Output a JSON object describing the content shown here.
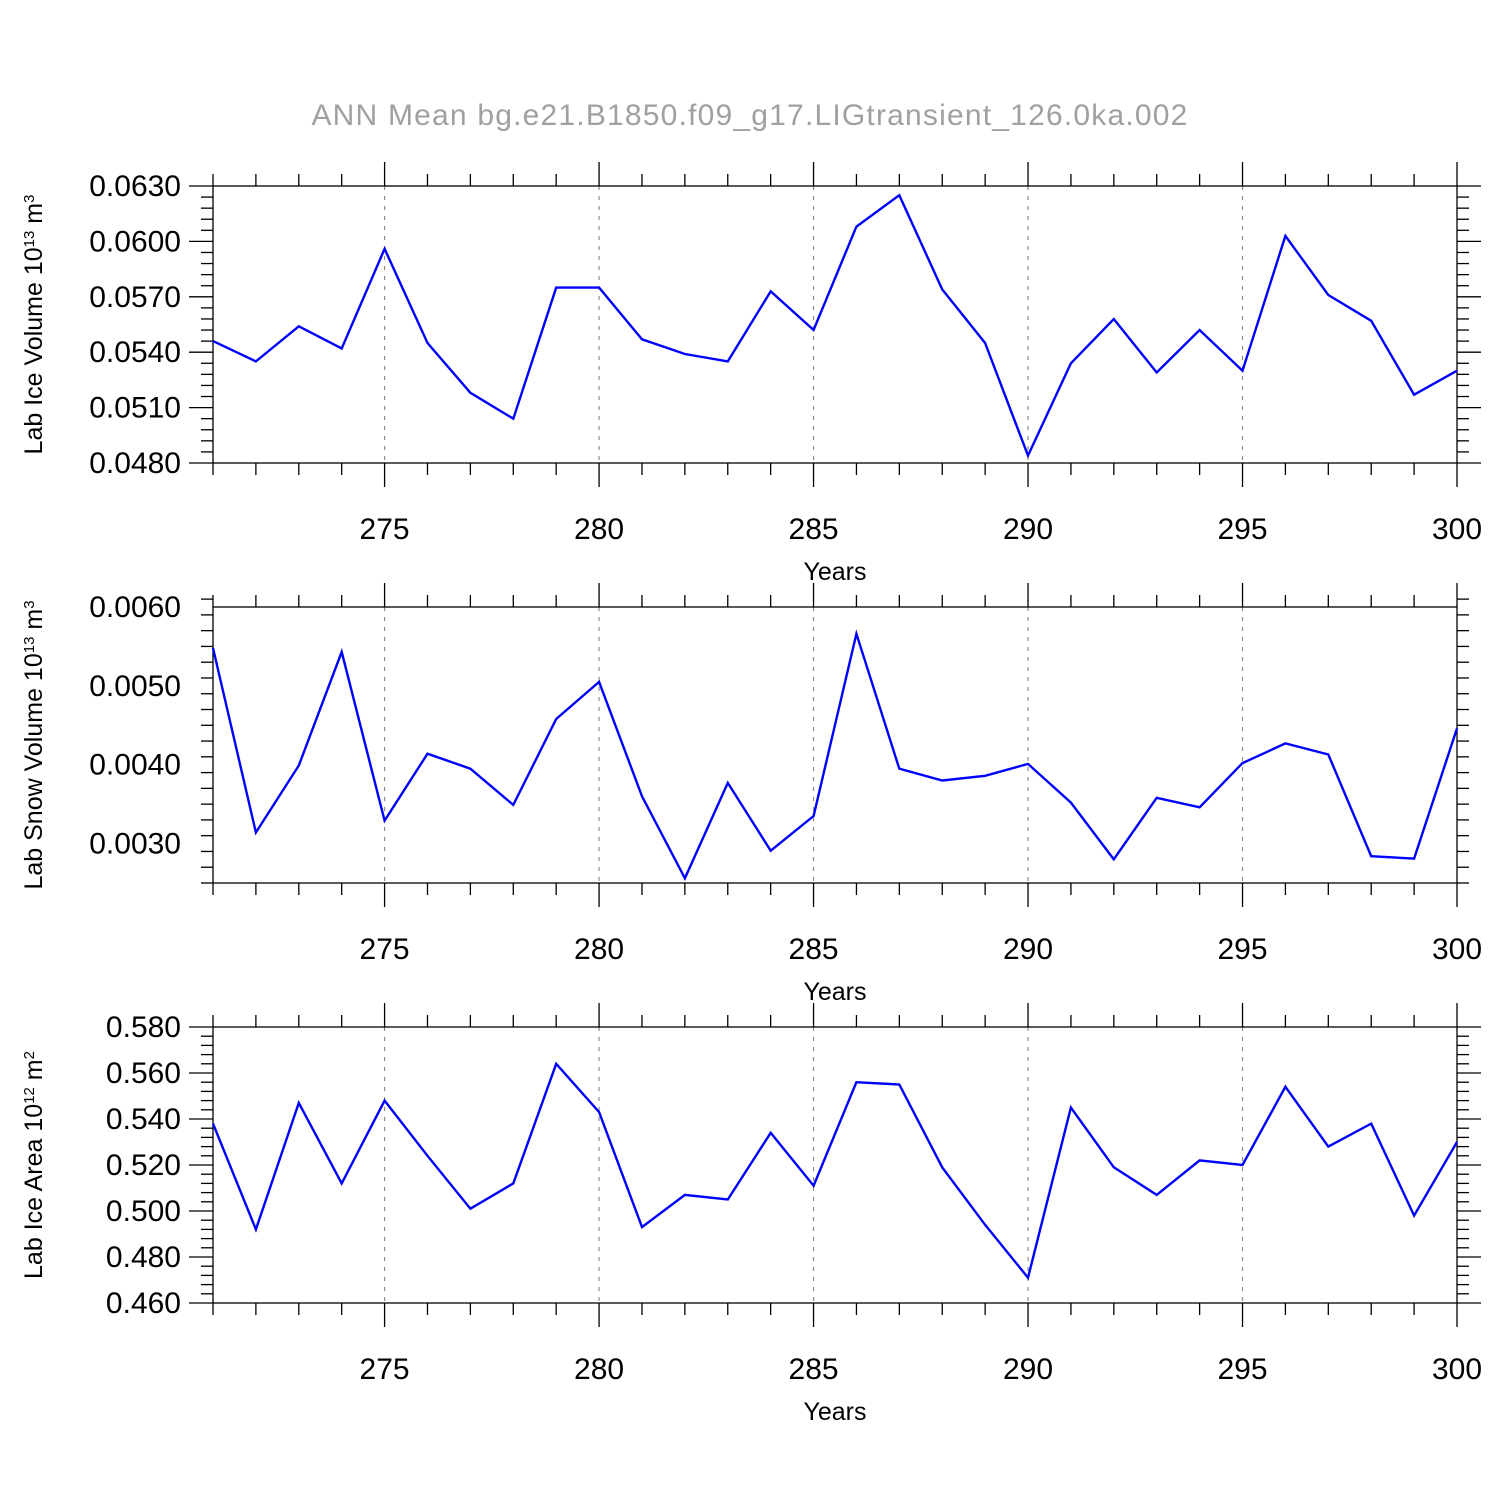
{
  "title": "ANN Mean bg.e21.B1850.f09_g17.LIGtransient_126.0ka.002",
  "colors": {
    "series": "#0000ff",
    "axis": "#000000",
    "grid": "#8c8c8c",
    "title": "#a0a0a0"
  },
  "chart_data": [
    {
      "type": "line",
      "ylabel_main": "Lab Ice Volume 10",
      "ylabel_exp": "13",
      "ylabel_unit": " m",
      "ylabel_unit_exp": "3",
      "xlabel": "Years",
      "xlim": [
        271,
        300
      ],
      "ylim": [
        0.048,
        0.063
      ],
      "yticks": [
        0.048,
        0.051,
        0.054,
        0.057,
        0.06,
        0.063
      ],
      "ytick_labels": [
        "0.0480",
        "0.0510",
        "0.0540",
        "0.0570",
        "0.0600",
        "0.0630"
      ],
      "xticks": [
        275,
        280,
        285,
        290,
        295,
        300
      ],
      "xtick_labels": [
        "275",
        "280",
        "285",
        "290",
        "295",
        "300"
      ],
      "x": [
        271,
        272,
        273,
        274,
        275,
        276,
        277,
        278,
        279,
        280,
        281,
        282,
        283,
        284,
        285,
        286,
        287,
        288,
        289,
        290,
        291,
        292,
        293,
        294,
        295,
        296,
        297,
        298,
        299,
        300
      ],
      "values": [
        0.0546,
        0.0535,
        0.0554,
        0.0542,
        0.0596,
        0.0545,
        0.0518,
        0.0504,
        0.0575,
        0.0575,
        0.0547,
        0.0539,
        0.0535,
        0.0573,
        0.0552,
        0.0608,
        0.0625,
        0.0574,
        0.0545,
        0.0484,
        0.0534,
        0.0558,
        0.0529,
        0.0552,
        0.053,
        0.0603,
        0.0571,
        0.0557,
        0.0517,
        0.053
      ],
      "grid": "vertical dashed at major x ticks"
    },
    {
      "type": "line",
      "ylabel_main": "Lab Snow Volume 10",
      "ylabel_exp": "13",
      "ylabel_unit": " m",
      "ylabel_unit_exp": "3",
      "xlabel": "Years",
      "xlim": [
        271,
        300
      ],
      "ylim": [
        0.0025,
        0.006
      ],
      "yticks": [
        0.003,
        0.004,
        0.005,
        0.006
      ],
      "ytick_labels": [
        "0.0030",
        "0.0040",
        "0.0050",
        "0.0060"
      ],
      "xticks": [
        275,
        280,
        285,
        290,
        295,
        300
      ],
      "xtick_labels": [
        "275",
        "280",
        "285",
        "290",
        "295",
        "300"
      ],
      "x": [
        271,
        272,
        273,
        274,
        275,
        276,
        277,
        278,
        279,
        280,
        281,
        282,
        283,
        284,
        285,
        286,
        287,
        288,
        289,
        290,
        291,
        292,
        293,
        294,
        295,
        296,
        297,
        298,
        299,
        300
      ],
      "values": [
        0.00548,
        0.00314,
        0.00399,
        0.00543,
        0.00329,
        0.00414,
        0.00395,
        0.00349,
        0.00458,
        0.00505,
        0.0036,
        0.00256,
        0.00377,
        0.00291,
        0.00335,
        0.00566,
        0.00395,
        0.0038,
        0.00386,
        0.00401,
        0.00352,
        0.0028,
        0.00358,
        0.00346,
        0.00402,
        0.00427,
        0.00413,
        0.00284,
        0.00281,
        0.00446
      ],
      "grid": "vertical dashed at major x ticks"
    },
    {
      "type": "line",
      "ylabel_main": "Lab Ice Area 10",
      "ylabel_exp": "12",
      "ylabel_unit": " m",
      "ylabel_unit_exp": "2",
      "xlabel": "Years",
      "xlim": [
        271,
        300
      ],
      "ylim": [
        0.46,
        0.58
      ],
      "yticks": [
        0.46,
        0.48,
        0.5,
        0.52,
        0.54,
        0.56,
        0.58
      ],
      "ytick_labels": [
        "0.460",
        "0.480",
        "0.500",
        "0.520",
        "0.540",
        "0.560",
        "0.580"
      ],
      "xticks": [
        275,
        280,
        285,
        290,
        295,
        300
      ],
      "xtick_labels": [
        "275",
        "280",
        "285",
        "290",
        "295",
        "300"
      ],
      "x": [
        271,
        272,
        273,
        274,
        275,
        276,
        277,
        278,
        279,
        280,
        281,
        282,
        283,
        284,
        285,
        286,
        287,
        288,
        289,
        290,
        291,
        292,
        293,
        294,
        295,
        296,
        297,
        298,
        299,
        300
      ],
      "values": [
        0.538,
        0.492,
        0.547,
        0.512,
        0.548,
        0.524,
        0.501,
        0.512,
        0.564,
        0.543,
        0.493,
        0.507,
        0.505,
        0.534,
        0.511,
        0.556,
        0.555,
        0.519,
        0.494,
        0.471,
        0.545,
        0.519,
        0.507,
        0.522,
        0.52,
        0.554,
        0.528,
        0.538,
        0.498,
        0.53
      ],
      "grid": "vertical dashed at major x ticks"
    }
  ]
}
